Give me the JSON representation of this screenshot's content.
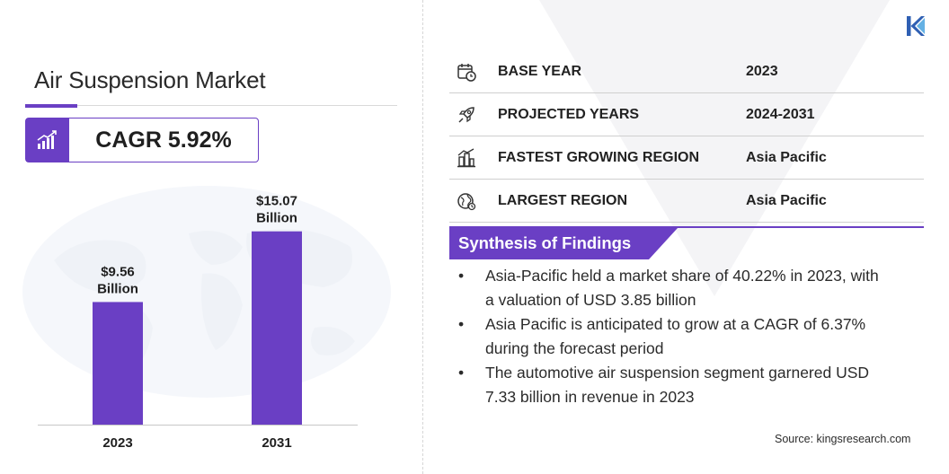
{
  "title": "Air Suspension Market",
  "cagr": {
    "label": "CAGR 5.92%",
    "icon": "growth-chart-icon"
  },
  "chart_data": {
    "type": "bar",
    "categories": [
      "2023",
      "2031"
    ],
    "values": [
      9.56,
      15.07
    ],
    "data_labels": [
      {
        "value": "$9.56",
        "unit": "Billion"
      },
      {
        "value": "$15.07",
        "unit": "Billion"
      }
    ],
    "title": "",
    "xlabel": "",
    "ylabel": "",
    "ylim": [
      0,
      17.5
    ],
    "grid": false,
    "bar_color": "#6a3fc4"
  },
  "info_table": [
    {
      "icon": "calendar-clock-icon",
      "label": "BASE YEAR",
      "value": "2023"
    },
    {
      "icon": "rocket-icon",
      "label": "PROJECTED YEARS",
      "value": "2024-2031"
    },
    {
      "icon": "city-growth-icon",
      "label": "FASTEST GROWING REGION",
      "value": "Asia Pacific"
    },
    {
      "icon": "globe-icon",
      "label": "LARGEST REGION",
      "value": "Asia Pacific"
    }
  ],
  "synthesis": {
    "title": "Synthesis of Findings",
    "bullet": "•",
    "findings": [
      {
        "line1": "Asia-Pacific held a market share of 40.22% in 2023, with",
        "line2": "a valuation of USD 3.85 billion"
      },
      {
        "line1": "Asia Pacific is anticipated to grow at a CAGR of 6.37%",
        "line2": "during the forecast period"
      },
      {
        "line1": "The automotive air suspension segment garnered USD",
        "line2": "7.33 billion in revenue in 2023"
      }
    ]
  },
  "source": "Source:  kingsresearch.com",
  "colors": {
    "accent": "#6a3fc4",
    "text": "#1f1f1f"
  }
}
